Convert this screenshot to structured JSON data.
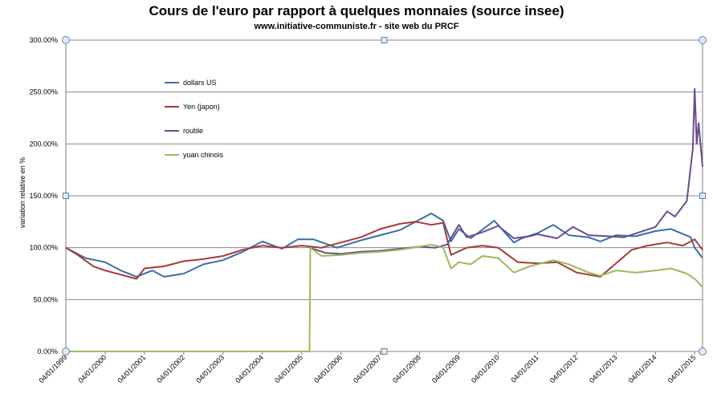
{
  "chart_data": {
    "type": "line",
    "title": "Cours de l'euro par rapport à quelques monnaies (source insee)",
    "subtitle": "www.initiative-communiste.fr  - site web du PRCF",
    "ylabel": "variation relative en %",
    "xlabel": "",
    "ylim": [
      0,
      3
    ],
    "y_ticks": [
      {
        "value": 0,
        "label": "0.00%"
      },
      {
        "value": 0.5,
        "label": "50.00%"
      },
      {
        "value": 1.0,
        "label": "100.00%"
      },
      {
        "value": 1.5,
        "label": "150.00%"
      },
      {
        "value": 2.0,
        "label": "200.00%"
      },
      {
        "value": 2.5,
        "label": "250.00%"
      },
      {
        "value": 3.0,
        "label": "300.00%"
      }
    ],
    "x_range": [
      "04/01/1999",
      "04/01/2015"
    ],
    "x_ticks": [
      "04/01/1999",
      "04/01/2000",
      "04/01/2001",
      "04/01/2002",
      "04/01/2003",
      "04/01/2004",
      "04/01/2005",
      "04/01/2006",
      "04/01/2007",
      "04/01/2008",
      "04/01/2009",
      "04/01/2010",
      "04/01/2011",
      "04/01/2012",
      "04/01/2013",
      "04/01/2014",
      "04/01/2015"
    ],
    "grid": "horizontal",
    "legend_position": "top-left",
    "series": [
      {
        "name": "dollars US",
        "color": "#3a6ea5",
        "points": [
          [
            1999.0,
            1.0
          ],
          [
            1999.5,
            0.9
          ],
          [
            2000.0,
            0.86
          ],
          [
            2000.4,
            0.78
          ],
          [
            2000.8,
            0.72
          ],
          [
            2001.2,
            0.78
          ],
          [
            2001.5,
            0.72
          ],
          [
            2002.0,
            0.75
          ],
          [
            2002.5,
            0.84
          ],
          [
            2003.0,
            0.88
          ],
          [
            2003.5,
            0.96
          ],
          [
            2004.0,
            1.06
          ],
          [
            2004.5,
            0.99
          ],
          [
            2004.9,
            1.08
          ],
          [
            2005.3,
            1.08
          ],
          [
            2005.9,
            1.0
          ],
          [
            2006.5,
            1.07
          ],
          [
            2007.0,
            1.12
          ],
          [
            2007.5,
            1.17
          ],
          [
            2007.9,
            1.25
          ],
          [
            2008.3,
            1.33
          ],
          [
            2008.6,
            1.26
          ],
          [
            2008.8,
            1.06
          ],
          [
            2009.0,
            1.18
          ],
          [
            2009.3,
            1.09
          ],
          [
            2009.9,
            1.26
          ],
          [
            2010.4,
            1.05
          ],
          [
            2010.6,
            1.09
          ],
          [
            2011.0,
            1.14
          ],
          [
            2011.4,
            1.22
          ],
          [
            2011.8,
            1.12
          ],
          [
            2012.3,
            1.1
          ],
          [
            2012.6,
            1.06
          ],
          [
            2013.0,
            1.12
          ],
          [
            2013.5,
            1.11
          ],
          [
            2014.0,
            1.16
          ],
          [
            2014.4,
            1.18
          ],
          [
            2014.9,
            1.1
          ],
          [
            2015.0,
            1.0
          ],
          [
            2015.2,
            0.9
          ]
        ]
      },
      {
        "name": "Yen (japon)",
        "color": "#a83a36",
        "points": [
          [
            1999.0,
            1.0
          ],
          [
            1999.3,
            0.93
          ],
          [
            1999.7,
            0.82
          ],
          [
            2000.0,
            0.78
          ],
          [
            2000.4,
            0.74
          ],
          [
            2000.8,
            0.7
          ],
          [
            2001.0,
            0.8
          ],
          [
            2001.5,
            0.82
          ],
          [
            2002.0,
            0.87
          ],
          [
            2002.5,
            0.89
          ],
          [
            2003.0,
            0.92
          ],
          [
            2003.5,
            0.98
          ],
          [
            2004.0,
            1.02
          ],
          [
            2004.5,
            1.0
          ],
          [
            2005.0,
            1.02
          ],
          [
            2005.5,
            1.0
          ],
          [
            2006.0,
            1.05
          ],
          [
            2006.5,
            1.1
          ],
          [
            2007.0,
            1.18
          ],
          [
            2007.5,
            1.23
          ],
          [
            2007.9,
            1.25
          ],
          [
            2008.3,
            1.22
          ],
          [
            2008.6,
            1.24
          ],
          [
            2008.8,
            0.93
          ],
          [
            2009.2,
            1.0
          ],
          [
            2009.6,
            1.02
          ],
          [
            2010.0,
            1.0
          ],
          [
            2010.5,
            0.86
          ],
          [
            2011.0,
            0.85
          ],
          [
            2011.5,
            0.86
          ],
          [
            2012.0,
            0.76
          ],
          [
            2012.6,
            0.72
          ],
          [
            2013.0,
            0.85
          ],
          [
            2013.4,
            0.98
          ],
          [
            2013.8,
            1.02
          ],
          [
            2014.3,
            1.05
          ],
          [
            2014.7,
            1.02
          ],
          [
            2015.0,
            1.08
          ],
          [
            2015.2,
            0.98
          ]
        ]
      },
      {
        "name": "rouble",
        "color": "#6a4c8f",
        "points": [
          [
            2005.2,
            1.0
          ],
          [
            2005.6,
            0.95
          ],
          [
            2006.0,
            0.94
          ],
          [
            2006.5,
            0.96
          ],
          [
            2007.0,
            0.97
          ],
          [
            2007.5,
            0.99
          ],
          [
            2008.0,
            1.01
          ],
          [
            2008.4,
            1.0
          ],
          [
            2008.7,
            1.03
          ],
          [
            2009.0,
            1.22
          ],
          [
            2009.2,
            1.1
          ],
          [
            2009.6,
            1.15
          ],
          [
            2010.0,
            1.21
          ],
          [
            2010.4,
            1.09
          ],
          [
            2010.8,
            1.11
          ],
          [
            2011.0,
            1.13
          ],
          [
            2011.5,
            1.09
          ],
          [
            2011.9,
            1.2
          ],
          [
            2012.3,
            1.12
          ],
          [
            2012.8,
            1.11
          ],
          [
            2013.2,
            1.1
          ],
          [
            2013.6,
            1.15
          ],
          [
            2014.0,
            1.2
          ],
          [
            2014.3,
            1.35
          ],
          [
            2014.5,
            1.3
          ],
          [
            2014.8,
            1.45
          ],
          [
            2014.95,
            1.95
          ],
          [
            2015.0,
            2.53
          ],
          [
            2015.05,
            2.0
          ],
          [
            2015.1,
            2.2
          ],
          [
            2015.2,
            1.78
          ]
        ]
      },
      {
        "name": "yuan chinois",
        "color": "#9bbb59",
        "points": [
          [
            1999.0,
            0.0
          ],
          [
            2005.2,
            0.0
          ],
          [
            2005.22,
            1.0
          ],
          [
            2005.5,
            0.92
          ],
          [
            2006.0,
            0.93
          ],
          [
            2006.5,
            0.95
          ],
          [
            2007.0,
            0.96
          ],
          [
            2007.5,
            0.98
          ],
          [
            2008.0,
            1.01
          ],
          [
            2008.3,
            1.03
          ],
          [
            2008.6,
            1.0
          ],
          [
            2008.8,
            0.8
          ],
          [
            2009.0,
            0.86
          ],
          [
            2009.3,
            0.84
          ],
          [
            2009.6,
            0.92
          ],
          [
            2010.0,
            0.9
          ],
          [
            2010.4,
            0.76
          ],
          [
            2010.8,
            0.82
          ],
          [
            2011.0,
            0.84
          ],
          [
            2011.4,
            0.88
          ],
          [
            2011.8,
            0.84
          ],
          [
            2012.3,
            0.76
          ],
          [
            2012.6,
            0.73
          ],
          [
            2013.0,
            0.78
          ],
          [
            2013.5,
            0.76
          ],
          [
            2014.0,
            0.78
          ],
          [
            2014.4,
            0.8
          ],
          [
            2014.8,
            0.75
          ],
          [
            2015.0,
            0.7
          ],
          [
            2015.2,
            0.62
          ]
        ]
      }
    ]
  }
}
